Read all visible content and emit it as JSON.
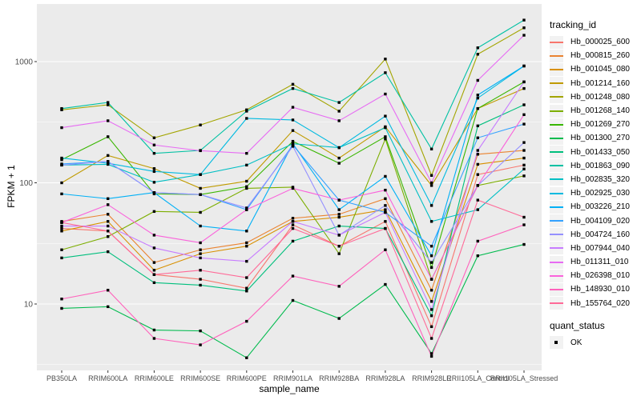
{
  "colors": {
    "panel_bg": "#EBEBEB",
    "grid_major": "#FFFFFF",
    "grid_minor": "#FFFFFF",
    "tick_text": "#4D4D4D",
    "tick_mark": "#333333",
    "axis_title": "#000000",
    "legend_key_bg": "#F2F2F2",
    "point": "#000000"
  },
  "chart_data": {
    "type": "line",
    "title": "",
    "xlabel": "sample_name",
    "ylabel": "FPKM + 1",
    "y_scale": "log10",
    "grid": true,
    "legend_position": "right",
    "legend_title": "tracking_id",
    "point_legend": {
      "title": "quant_status",
      "label": "OK"
    },
    "y_ticks": [
      10,
      100,
      1000
    ],
    "y_tick_labels": [
      "10",
      "100",
      "1000"
    ],
    "y_minor_ticks": [
      3.162,
      31.62,
      316.2,
      3162
    ],
    "ylim": [
      2.9,
      2950
    ],
    "categories": [
      "PB350LA",
      "RRIM600LA",
      "RRIM600LE",
      "RRIM600SE",
      "RRIM600PE",
      "RRIM901LA",
      "RRIM928BA",
      "RRIM928LA",
      "RRIM928LE",
      "RRII105LA_Control",
      "RRII105LA_Stressed"
    ],
    "series": [
      {
        "name": "Hb_000025_600",
        "color": "#F8766D",
        "values": [
          42,
          40,
          17.5,
          16,
          13.5,
          45,
          30,
          48,
          6.5,
          117,
          140
        ]
      },
      {
        "name": "Hb_000815_260",
        "color": "#EA8331",
        "values": [
          48,
          55,
          22,
          28,
          32,
          51,
          55,
          74,
          13,
          172,
          185
        ]
      },
      {
        "name": "Hb_001045_080",
        "color": "#D89000",
        "values": [
          40,
          48,
          19,
          26,
          30,
          48,
          52,
          60,
          10.5,
          142,
          160
        ]
      },
      {
        "name": "Hb_001214_160",
        "color": "#C09B00",
        "values": [
          100,
          168,
          131,
          90,
          103,
          270,
          160,
          290,
          95,
          410,
          600
        ]
      },
      {
        "name": "Hb_001248_080",
        "color": "#A3A500",
        "values": [
          400,
          440,
          235,
          300,
          400,
          650,
          390,
          1050,
          115,
          1150,
          1900
        ]
      },
      {
        "name": "Hb_001268_140",
        "color": "#7CAE00",
        "values": [
          28,
          36,
          58,
          57,
          90,
          92,
          26,
          230,
          16,
          95,
          114
        ]
      },
      {
        "name": "Hb_001269_270",
        "color": "#39B600",
        "values": [
          155,
          240,
          81,
          80,
          93,
          220,
          145,
          240,
          20,
          410,
          680
        ]
      },
      {
        "name": "Hb_001300_270",
        "color": "#00BB4E",
        "values": [
          9.2,
          9.5,
          6.1,
          6,
          3.6,
          10.7,
          7.6,
          14.5,
          3.9,
          25,
          31
        ]
      },
      {
        "name": "Hb_001433_050",
        "color": "#00BF7D",
        "values": [
          24,
          27,
          15,
          14.3,
          12.8,
          33,
          44,
          42,
          8,
          295,
          440
        ]
      },
      {
        "name": "Hb_001863_090",
        "color": "#00C1A3",
        "values": [
          410,
          460,
          175,
          185,
          390,
          600,
          460,
          810,
          190,
          1300,
          2200
        ]
      },
      {
        "name": "Hb_002835_320",
        "color": "#00BFC4",
        "values": [
          140,
          142,
          101,
          117,
          140,
          210,
          195,
          285,
          48,
          60,
          130
        ]
      },
      {
        "name": "Hb_002925_030",
        "color": "#00BAE0",
        "values": [
          160,
          145,
          124,
          117,
          340,
          330,
          195,
          355,
          65,
          500,
          920
        ]
      },
      {
        "name": "Hb_003226_210",
        "color": "#00B0F6",
        "values": [
          81,
          74,
          83,
          44,
          40,
          210,
          60,
          113,
          25,
          530,
          920
        ]
      },
      {
        "name": "Hb_004109_020",
        "color": "#35A2FF",
        "values": [
          143,
          150,
          83,
          80,
          60,
          205,
          72,
          57,
          30,
          235,
          305
        ]
      },
      {
        "name": "Hb_004724_160",
        "color": "#9590FF",
        "values": [
          140,
          150,
          83,
          80,
          62,
          200,
          37,
          65,
          22,
          95,
          215
        ]
      },
      {
        "name": "Hb_007944_040",
        "color": "#C77CFF",
        "values": [
          44,
          44,
          29,
          24,
          22.5,
          48,
          37,
          57,
          9,
          185,
          680
        ]
      },
      {
        "name": "Hb_011311_010",
        "color": "#E76BF3",
        "values": [
          285,
          325,
          205,
          184,
          175,
          420,
          325,
          540,
          100,
          700,
          1650
        ]
      },
      {
        "name": "Hb_026398_010",
        "color": "#FA62DB",
        "values": [
          47,
          66,
          37,
          32,
          60,
          90,
          72,
          87,
          16,
          95,
          365
        ]
      },
      {
        "name": "Hb_148930_010",
        "color": "#FF62BC",
        "values": [
          11,
          13,
          5.2,
          4.6,
          7.2,
          17,
          14,
          28,
          3.7,
          33,
          45
        ]
      },
      {
        "name": "Hb_155764_020",
        "color": "#FF6A98",
        "values": [
          47,
          40,
          17.5,
          19,
          16.5,
          42,
          30,
          42,
          5.2,
          72,
          52
        ]
      }
    ]
  }
}
